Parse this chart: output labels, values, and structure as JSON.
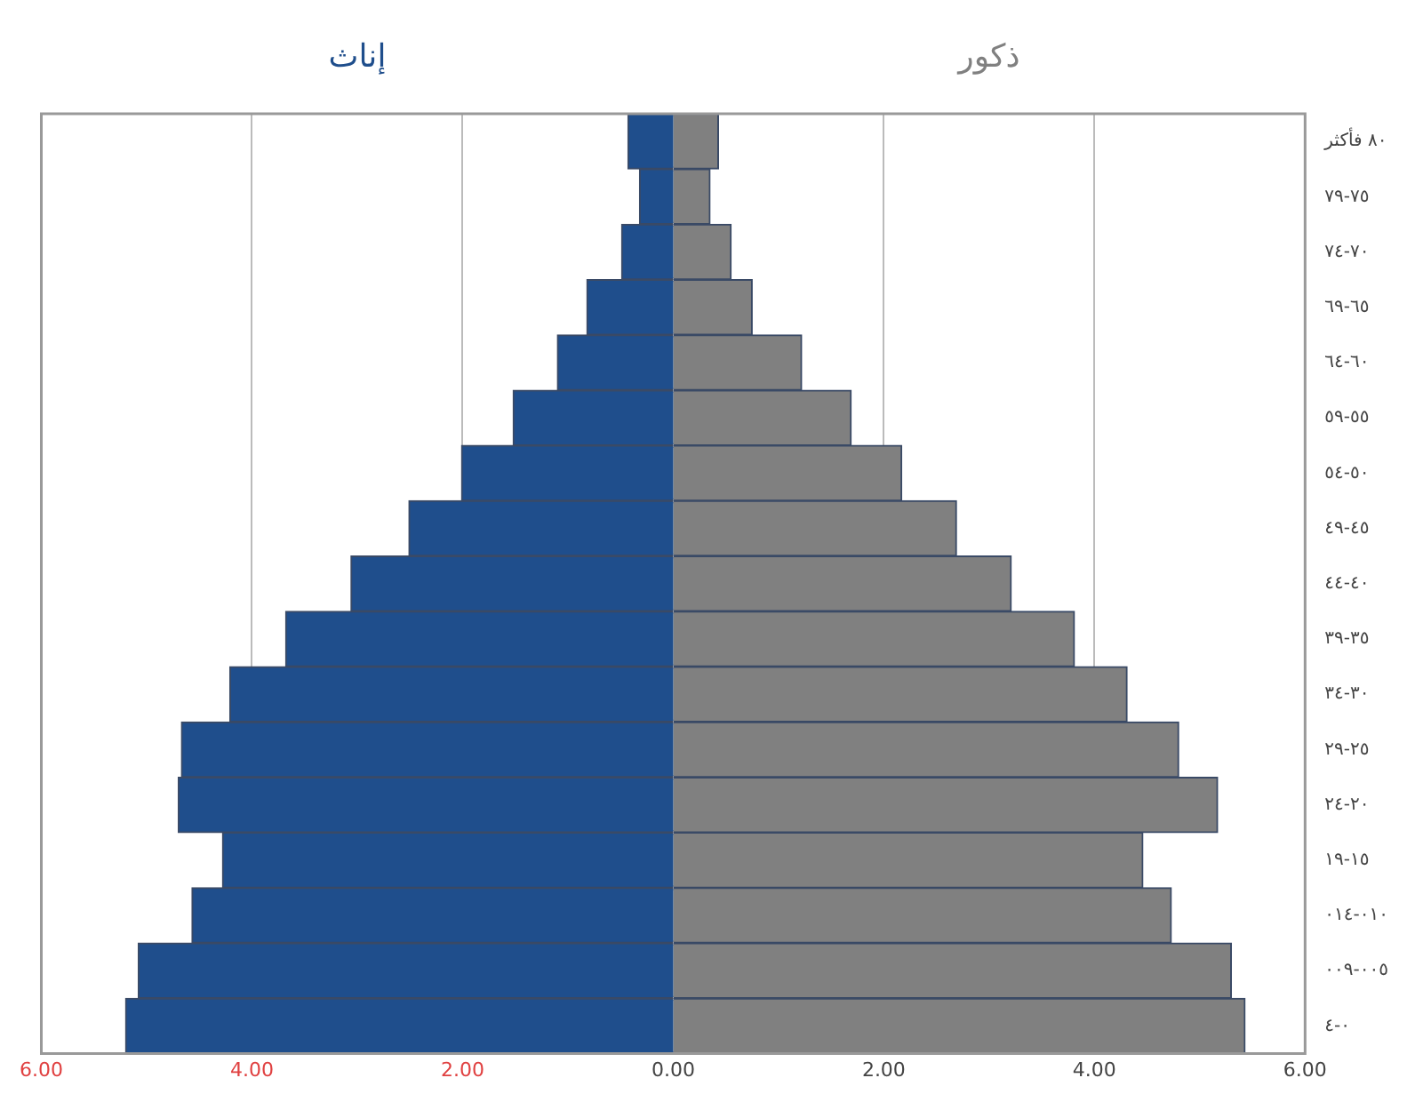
{
  "chart_data": {
    "type": "bar",
    "orientation": "horizontal",
    "stacked": true,
    "categories": [
      "٨٠ فأكثر",
      "٧٥-٧٩",
      "٧٠-٧٤",
      "٦٥-٦٩",
      "٦٠-٦٤",
      "٥٥-٥٩",
      "٥٠-٥٤",
      "٤٥-٤٩",
      "٤٠-٤٤",
      "٣٥-٣٩",
      "٣٠-٣٤",
      "٢٥-٢٩",
      "٢٠-٢٤",
      "١٥-١٩",
      "٠١٠-٠١٤",
      "٠٠٥-٠٠٩",
      "٠-٤"
    ],
    "series": [
      {
        "name": "إناث",
        "color": "#1f4e8c",
        "values": [
          -0.43,
          -0.32,
          -0.49,
          -0.82,
          -1.1,
          -1.52,
          -2.01,
          -2.51,
          -3.06,
          -3.68,
          -4.21,
          -4.67,
          -4.7,
          -4.28,
          -4.57,
          -5.08,
          -5.2
        ]
      },
      {
        "name": "ذكور",
        "color": "#808080",
        "values": [
          0.43,
          0.35,
          0.55,
          0.75,
          1.22,
          1.69,
          2.17,
          2.69,
          3.21,
          3.81,
          4.31,
          4.8,
          5.17,
          4.46,
          4.73,
          5.3,
          5.43
        ]
      }
    ],
    "xlim": [
      -6,
      6
    ],
    "xticks": [
      {
        "value": -6,
        "label": "6.00"
      },
      {
        "value": -4,
        "label": "4.00"
      },
      {
        "value": -2,
        "label": "2.00"
      },
      {
        "value": 0,
        "label": "0.00"
      },
      {
        "value": 2,
        "label": "2.00"
      },
      {
        "value": 4,
        "label": "4.00"
      },
      {
        "value": 6,
        "label": "6.00"
      }
    ],
    "grid": "x",
    "legend": false
  }
}
